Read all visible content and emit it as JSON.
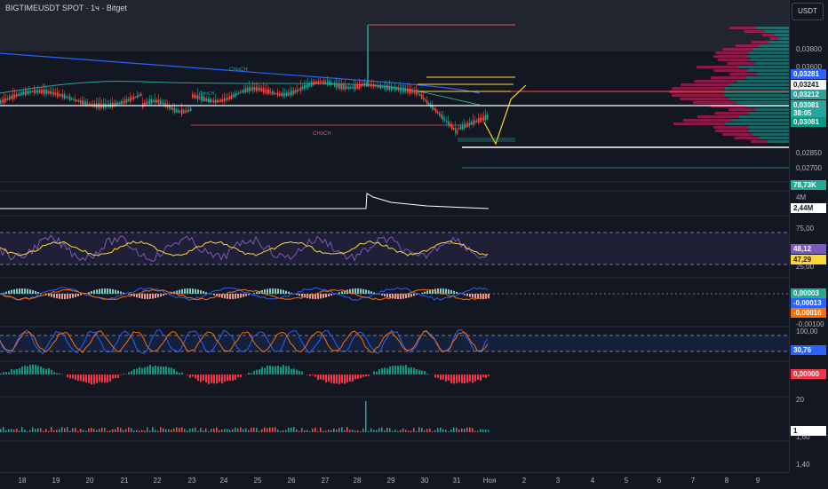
{
  "header": {
    "title": "BIGTIMEUSDT SPOT · 1ч · Bitget",
    "currency": "USDT"
  },
  "annotations": {
    "choch_top": "CHoCH",
    "choch_bottom": "CHoCH",
    "choch_small": "CHoCH"
  },
  "price_scale": {
    "labels": [
      "0,03800",
      "0,03600",
      "0,02850",
      "0,02700",
      "4M",
      "75,00",
      "25,00",
      "-0,00100",
      "100,00",
      "20",
      "1,60",
      "1,40"
    ],
    "badges": [
      {
        "text": "0,03281",
        "color": "#2962ff"
      },
      {
        "text": "0,03241",
        "color": "#f7f7f7",
        "fg": "#131722"
      },
      {
        "text": "0,03212",
        "color": "#26a69a"
      },
      {
        "text": "0,03081",
        "color": "#26a69a"
      },
      {
        "text": "38:05",
        "color": "#26a69a"
      },
      {
        "text": "0,03081",
        "color": "#089981"
      },
      {
        "text": "78,73K",
        "color": "#22ab94"
      },
      {
        "text": "2,44M",
        "color": "#ffffff",
        "fg": "#131722"
      },
      {
        "text": "48,12",
        "color": "#7e57c2"
      },
      {
        "text": "47,29",
        "color": "#fdd835",
        "fg": "#131722"
      },
      {
        "text": "0,00003",
        "color": "#22ab94"
      },
      {
        "text": "-0,00013",
        "color": "#2962ff"
      },
      {
        "text": "-0,00016",
        "color": "#ff6d00"
      },
      {
        "text": "30,76",
        "color": "#2962ff"
      },
      {
        "text": "0,00000",
        "color": "#f23645"
      },
      {
        "text": "1",
        "color": "#ffffff",
        "fg": "#131722"
      }
    ]
  },
  "time_axis": {
    "labels": [
      "18",
      "19",
      "20",
      "21",
      "22",
      "23",
      "24",
      "25",
      "26",
      "27",
      "28",
      "29",
      "30",
      "31",
      "Ноя",
      "2",
      "3",
      "4",
      "5",
      "6",
      "7",
      "8",
      "9"
    ]
  },
  "colors": {
    "up": "#26a69a",
    "down": "#ef5350",
    "background": "#131722",
    "accent": "#2962ff"
  },
  "icons": [
    "chart-logo"
  ]
}
